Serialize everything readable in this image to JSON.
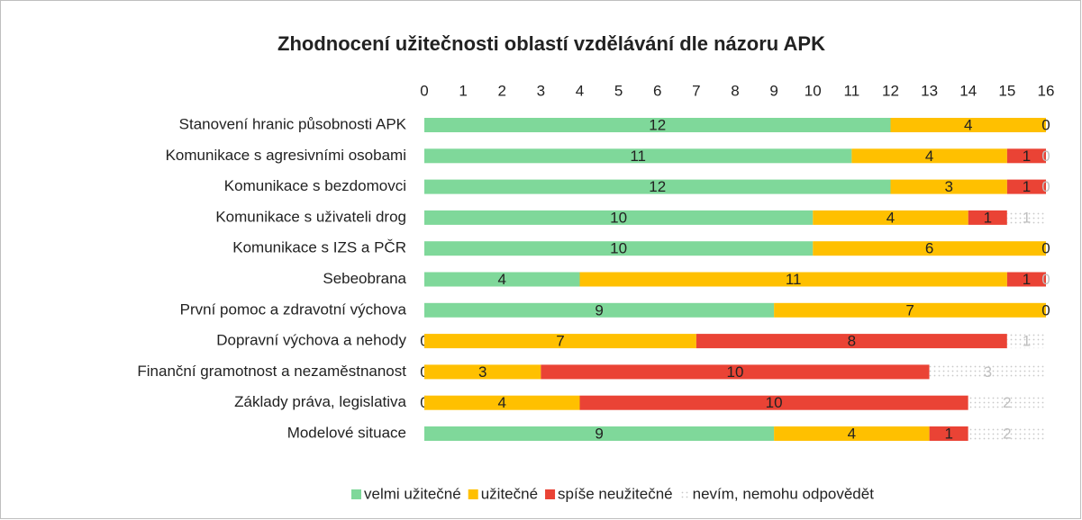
{
  "chart_data": {
    "type": "stacked-horizontal-bar",
    "title": "Zhodnocení užitečnosti oblastí vzdělávání dle názoru APK",
    "categories": [
      "Stanovení hranic působnosti APK",
      "Komunikace s agresivními osobami",
      "Komunikace s bezdomovci",
      "Komunikace s uživateli drog",
      "Komunikace s IZS a PČR",
      "Sebeobrana",
      "První pomoc a zdravotní výchova",
      "Dopravní výchova a nehody",
      "Finanční gramotnost a nezaměstnanost",
      "Základy práva, legislativa",
      "Modelové situace"
    ],
    "series": [
      {
        "name": "velmi užitečné",
        "color": "#7fd89a",
        "values": [
          12,
          11,
          12,
          10,
          10,
          4,
          9,
          0,
          0,
          0,
          9
        ]
      },
      {
        "name": "užitečné",
        "color": "#ffc000",
        "values": [
          4,
          4,
          3,
          4,
          6,
          11,
          7,
          7,
          3,
          4,
          4
        ]
      },
      {
        "name": "spíše neužitečné",
        "color": "#ea4335",
        "values": [
          0,
          1,
          1,
          1,
          0,
          1,
          0,
          8,
          10,
          10,
          1
        ]
      },
      {
        "name": "nevím, nemohu odpovědět",
        "color": "#d9d9d9",
        "values": [
          null,
          0,
          0,
          1,
          null,
          0,
          null,
          1,
          3,
          2,
          2
        ]
      }
    ],
    "xlim": [
      0,
      16
    ],
    "xticks": [
      0,
      1,
      2,
      3,
      4,
      5,
      6,
      7,
      8,
      9,
      10,
      11,
      12,
      13,
      14,
      15,
      16
    ],
    "legend": "bottom"
  }
}
